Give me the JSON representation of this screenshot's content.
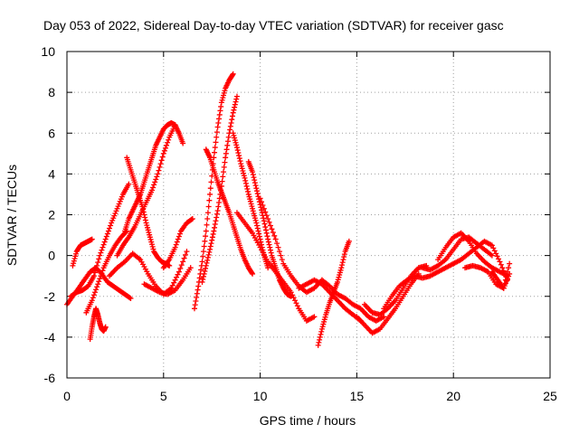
{
  "chart_data": {
    "type": "scatter",
    "title": "Day 053 of 2022, Sidereal Day-to-day VTEC variation (SDTVAR) for receiver gasc",
    "xlabel": "GPS time / hours",
    "ylabel": "SDTVAR / TECUs",
    "xlim": [
      0,
      25
    ],
    "ylim": [
      -6,
      10
    ],
    "xticks": [
      "0",
      "5",
      "10",
      "15",
      "20",
      "25"
    ],
    "yticks": [
      "-6",
      "-4",
      "-2",
      "0",
      "2",
      "4",
      "6",
      "8",
      "10"
    ],
    "grid": true,
    "marker": "+",
    "color": "#ff0000",
    "series": [
      {
        "name": "s1",
        "x": [
          0.0,
          0.3,
          0.6,
          0.9,
          1.2,
          1.5,
          1.8,
          2.1,
          2.4,
          2.7,
          3.0,
          3.3
        ],
        "y": [
          -2.4,
          -2.0,
          -1.6,
          -1.2,
          -0.8,
          -0.6,
          -0.9,
          -1.3,
          -1.5,
          -1.7,
          -1.9,
          -2.1
        ]
      },
      {
        "name": "s2",
        "x": [
          0.2,
          0.5,
          0.8,
          1.1,
          1.4,
          1.7,
          2.0,
          2.3,
          2.6,
          2.9,
          3.2
        ],
        "y": [
          -2.0,
          -1.8,
          -1.7,
          -1.5,
          -1.0,
          0.0,
          0.8,
          1.6,
          2.3,
          3.0,
          3.5
        ]
      },
      {
        "name": "s3",
        "x": [
          0.3,
          0.5,
          0.7,
          0.9,
          1.1,
          1.3
        ],
        "y": [
          -0.5,
          0.2,
          0.5,
          0.6,
          0.7,
          0.8
        ]
      },
      {
        "name": "s4",
        "x": [
          1.2,
          1.3,
          1.4,
          1.5,
          1.6,
          1.7,
          1.8,
          1.9,
          2.0
        ],
        "y": [
          -4.1,
          -3.5,
          -3.0,
          -2.6,
          -2.9,
          -3.3,
          -3.6,
          -3.7,
          -3.5
        ]
      },
      {
        "name": "s5",
        "x": [
          1.0,
          1.3,
          1.6,
          1.9,
          2.2,
          2.5,
          2.8,
          3.1
        ],
        "y": [
          -2.8,
          -2.2,
          -1.4,
          -0.6,
          0.0,
          0.5,
          0.9,
          1.2
        ]
      },
      {
        "name": "s6",
        "x": [
          3.0,
          3.2,
          3.4,
          3.6,
          3.8,
          4.0,
          4.2,
          4.4,
          4.6,
          4.8,
          5.0,
          5.2,
          5.4,
          5.6,
          5.8,
          6.0
        ],
        "y": [
          1.2,
          1.8,
          2.2,
          2.6,
          3.0,
          3.6,
          4.2,
          4.8,
          5.4,
          5.8,
          6.2,
          6.4,
          6.5,
          6.4,
          6.0,
          5.5
        ]
      },
      {
        "name": "s7",
        "x": [
          2.6,
          2.9,
          3.2,
          3.5,
          3.8,
          4.1,
          4.4,
          4.7,
          5.0,
          5.3,
          5.6
        ],
        "y": [
          0.0,
          0.5,
          0.9,
          1.4,
          2.0,
          2.6,
          3.2,
          4.0,
          5.0,
          5.8,
          6.4
        ]
      },
      {
        "name": "s8",
        "x": [
          3.1,
          3.3,
          3.5,
          3.7,
          3.9,
          4.1,
          4.3,
          4.5,
          4.7,
          4.9,
          5.1,
          5.3
        ],
        "y": [
          4.8,
          4.2,
          3.6,
          3.0,
          2.4,
          1.6,
          0.9,
          0.2,
          -0.1,
          -0.3,
          -0.4,
          -0.5
        ]
      },
      {
        "name": "s9",
        "x": [
          2.2,
          2.6,
          3.0,
          3.4,
          3.8,
          4.2,
          4.6,
          5.0,
          5.4,
          5.8,
          6.2
        ],
        "y": [
          -1.0,
          -0.6,
          -0.3,
          0.1,
          -0.2,
          -0.9,
          -1.5,
          -1.9,
          -1.6,
          -0.8,
          0.2
        ]
      },
      {
        "name": "s10",
        "x": [
          4.0,
          4.4,
          4.8,
          5.2,
          5.6,
          6.0,
          6.4
        ],
        "y": [
          -1.4,
          -1.6,
          -1.8,
          -1.9,
          -1.7,
          -1.2,
          -0.6
        ]
      },
      {
        "name": "s11",
        "x": [
          5.0,
          5.3,
          5.6,
          5.9,
          6.2,
          6.5
        ],
        "y": [
          -0.6,
          -0.2,
          0.4,
          1.2,
          1.6,
          1.8
        ]
      },
      {
        "name": "s12",
        "x": [
          6.6,
          6.8,
          7.0,
          7.2,
          7.4,
          7.6,
          7.8,
          8.0,
          8.2,
          8.4,
          8.6
        ],
        "y": [
          -2.6,
          -1.5,
          -0.3,
          1.2,
          3.0,
          4.8,
          6.3,
          7.5,
          8.2,
          8.6,
          8.9
        ]
      },
      {
        "name": "s13",
        "x": [
          7.0,
          7.2,
          7.4,
          7.6,
          7.8,
          8.0,
          8.2,
          8.4,
          8.6,
          8.8
        ],
        "y": [
          -1.3,
          -0.5,
          0.3,
          1.2,
          2.2,
          3.4,
          4.8,
          6.0,
          7.0,
          7.8
        ]
      },
      {
        "name": "s14",
        "x": [
          7.2,
          7.4,
          7.6,
          7.8,
          8.0,
          8.2,
          8.4,
          8.6,
          8.8,
          9.0,
          9.2,
          9.4,
          9.6
        ],
        "y": [
          5.2,
          4.8,
          4.2,
          3.6,
          3.1,
          2.6,
          2.1,
          1.5,
          0.9,
          0.3,
          -0.2,
          -0.6,
          -0.9
        ]
      },
      {
        "name": "s15",
        "x": [
          8.6,
          8.8,
          9.0,
          9.2,
          9.4,
          9.6,
          9.8,
          10.0,
          10.2,
          10.4
        ],
        "y": [
          6.0,
          5.3,
          4.5,
          3.8,
          3.0,
          2.3,
          1.6,
          0.8,
          0.0,
          -0.6
        ]
      },
      {
        "name": "s16",
        "x": [
          9.4,
          9.6,
          9.8,
          10.0,
          10.2,
          10.4,
          10.6,
          10.8,
          11.0,
          11.2,
          11.4,
          11.6
        ],
        "y": [
          4.6,
          4.1,
          3.3,
          2.5,
          1.7,
          0.8,
          0.0,
          -0.6,
          -1.2,
          -1.6,
          -1.9,
          -2.0
        ]
      },
      {
        "name": "s17",
        "x": [
          8.8,
          9.2,
          9.6,
          10.0,
          10.4,
          10.8,
          11.2,
          11.6,
          12.0,
          12.4,
          12.8
        ],
        "y": [
          2.1,
          1.6,
          1.1,
          0.4,
          -0.3,
          -0.8,
          -1.3,
          -1.8,
          -2.6,
          -3.2,
          -3.0
        ]
      },
      {
        "name": "s18",
        "x": [
          10.0,
          10.4,
          10.8,
          11.2,
          11.6,
          12.0,
          12.4,
          12.8,
          13.2
        ],
        "y": [
          2.8,
          1.8,
          0.8,
          -0.4,
          -1.0,
          -1.5,
          -1.8,
          -1.6,
          -1.2
        ]
      },
      {
        "name": "s19",
        "x": [
          12.0,
          12.4,
          12.8,
          13.2,
          13.6,
          14.0,
          14.4,
          14.8,
          15.2
        ],
        "y": [
          -1.6,
          -1.4,
          -1.2,
          -1.4,
          -1.8,
          -2.2,
          -2.6,
          -2.9,
          -3.2
        ]
      },
      {
        "name": "s20",
        "x": [
          13.0,
          13.2,
          13.4,
          13.6,
          13.8,
          14.0,
          14.2,
          14.4,
          14.6
        ],
        "y": [
          -4.4,
          -3.6,
          -2.9,
          -2.3,
          -1.8,
          -1.3,
          -0.6,
          0.2,
          0.7
        ]
      },
      {
        "name": "s21",
        "x": [
          13.2,
          13.6,
          14.0,
          14.4,
          14.8,
          15.2,
          15.6,
          16.0,
          16.4
        ],
        "y": [
          -1.2,
          -1.5,
          -1.9,
          -2.1,
          -2.4,
          -2.6,
          -3.0,
          -3.2,
          -3.0
        ]
      },
      {
        "name": "s22",
        "x": [
          15.0,
          15.4,
          15.8,
          16.2,
          16.6,
          17.0,
          17.4,
          17.8,
          18.2
        ],
        "y": [
          -3.0,
          -3.4,
          -3.8,
          -3.6,
          -3.1,
          -2.6,
          -2.0,
          -1.4,
          -0.9
        ]
      },
      {
        "name": "s23",
        "x": [
          15.4,
          15.8,
          16.2,
          16.6,
          17.0,
          17.4,
          17.8,
          18.2,
          18.6
        ],
        "y": [
          -2.4,
          -2.8,
          -2.9,
          -2.6,
          -2.2,
          -1.6,
          -1.0,
          -0.6,
          -0.5
        ]
      },
      {
        "name": "s24",
        "x": [
          16.4,
          16.8,
          17.2,
          17.6,
          18.0,
          18.4,
          18.8,
          19.2,
          19.6,
          20.0
        ],
        "y": [
          -2.6,
          -2.0,
          -1.5,
          -1.2,
          -1.0,
          -1.1,
          -1.0,
          -0.8,
          -0.6,
          -0.4
        ]
      },
      {
        "name": "s25",
        "x": [
          18.4,
          18.8,
          19.2,
          19.6,
          20.0,
          20.4,
          20.8,
          21.2,
          21.6,
          22.0
        ],
        "y": [
          -0.6,
          -0.7,
          -0.5,
          -0.2,
          0.3,
          0.8,
          0.9,
          0.6,
          0.3,
          0.0
        ]
      },
      {
        "name": "s26",
        "x": [
          19.2,
          19.6,
          20.0,
          20.4,
          20.8,
          21.2,
          21.6,
          22.0,
          22.4,
          22.8
        ],
        "y": [
          -0.2,
          0.4,
          0.9,
          1.1,
          0.7,
          0.1,
          -0.3,
          -0.6,
          -0.8,
          -1.0
        ]
      },
      {
        "name": "s27",
        "x": [
          20.0,
          20.4,
          20.8,
          21.2,
          21.6,
          22.0,
          22.4,
          22.8
        ],
        "y": [
          -0.4,
          -0.2,
          0.1,
          0.4,
          0.7,
          0.5,
          -0.3,
          -1.2
        ]
      },
      {
        "name": "s28",
        "x": [
          20.6,
          21.0,
          21.4,
          21.8,
          22.2,
          22.6,
          22.9
        ],
        "y": [
          -0.6,
          -0.5,
          -0.6,
          -0.8,
          -1.4,
          -1.6,
          -0.9
        ]
      },
      {
        "name": "s29",
        "x": [
          22.0,
          22.3,
          22.6,
          22.9
        ],
        "y": [
          -0.8,
          -1.2,
          -1.6,
          -0.4
        ]
      }
    ]
  }
}
